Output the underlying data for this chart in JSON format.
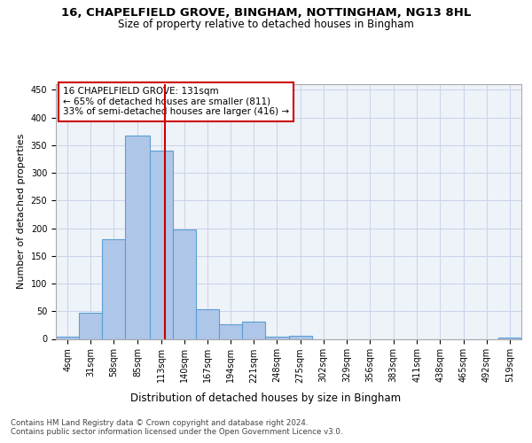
{
  "title1": "16, CHAPELFIELD GROVE, BINGHAM, NOTTINGHAM, NG13 8HL",
  "title2": "Size of property relative to detached houses in Bingham",
  "xlabel": "Distribution of detached houses by size in Bingham",
  "ylabel": "Number of detached properties",
  "bin_edges": [
    4,
    31,
    58,
    85,
    113,
    140,
    167,
    194,
    221,
    248,
    275,
    302,
    329,
    356,
    383,
    411,
    438,
    465,
    492,
    519,
    546
  ],
  "bar_heights": [
    4,
    48,
    180,
    367,
    340,
    198,
    54,
    26,
    32,
    4,
    6,
    0,
    0,
    0,
    0,
    0,
    0,
    0,
    0,
    3
  ],
  "bar_color": "#aec6e8",
  "bar_edgecolor": "#5a9fd4",
  "property_size": 131,
  "vline_color": "#cc0000",
  "annotation_text": "16 CHAPELFIELD GROVE: 131sqm\n← 65% of detached houses are smaller (811)\n33% of semi-detached houses are larger (416) →",
  "annotation_box_edgecolor": "#cc0000",
  "annotation_box_facecolor": "#ffffff",
  "ylim": [
    0,
    460
  ],
  "yticks": [
    0,
    50,
    100,
    150,
    200,
    250,
    300,
    350,
    400,
    450
  ],
  "grid_color": "#c8d4e8",
  "bg_color": "#eef2f9",
  "footer_text": "Contains HM Land Registry data © Crown copyright and database right 2024.\nContains public sector information licensed under the Open Government Licence v3.0.",
  "title1_fontsize": 9.5,
  "title2_fontsize": 8.5,
  "xlabel_fontsize": 8.5,
  "ylabel_fontsize": 8,
  "tick_fontsize": 7,
  "annotation_fontsize": 7.5,
  "footer_fontsize": 6.2
}
